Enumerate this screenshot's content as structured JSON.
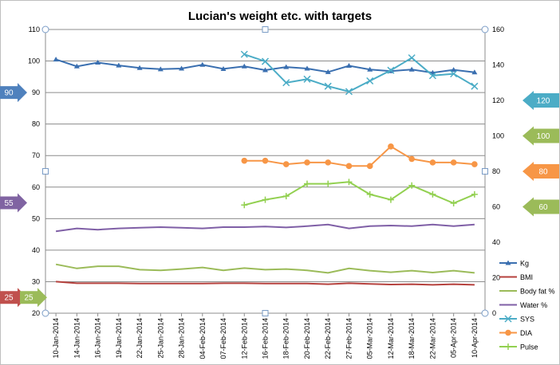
{
  "chart_data": {
    "type": "line",
    "title": "Lucian's  weight etc. with targets",
    "categories": [
      "10-Jan-2014",
      "14-Jan-2014",
      "16-Jan-2014",
      "19-Jan-2014",
      "22-Jan-2014",
      "25-Jan-2014",
      "28-Jan-2014",
      "04-Feb-2014",
      "07-Feb-2014",
      "12-Feb-2014",
      "16-Feb-2014",
      "18-Feb-2014",
      "20-Feb-2014",
      "22-Feb-2014",
      "27-Feb-2014",
      "05-Mar-2014",
      "12-Mar-2014",
      "18-Mar-2014",
      "22-Mar-2014",
      "05-Apr-2014",
      "10-Apr-2014"
    ],
    "y_left": {
      "min": 20,
      "max": 110,
      "step": 10
    },
    "y_right": {
      "min": 0,
      "max": 160,
      "step": 20
    },
    "grid": true,
    "legend_position": "right",
    "series": [
      {
        "name": "Kg",
        "axis": "left",
        "color": "#3a6fb0",
        "marker": "triangle",
        "values": [
          100.5,
          98.3,
          99.5,
          98.6,
          97.8,
          97.4,
          97.6,
          98.8,
          97.5,
          98.3,
          97.1,
          98.1,
          97.6,
          96.5,
          98.5,
          97.3,
          96.8,
          97.3,
          96.3,
          97.2,
          96.4
        ]
      },
      {
        "name": "BMI",
        "axis": "left",
        "color": "#b5413d",
        "marker": "none",
        "values": [
          30.0,
          29.5,
          29.5,
          29.5,
          29.4,
          29.4,
          29.4,
          29.4,
          29.5,
          29.5,
          29.4,
          29.4,
          29.4,
          29.2,
          29.5,
          29.3,
          29.1,
          29.2,
          29.0,
          29.2,
          29.0
        ]
      },
      {
        "name": "Body fat %",
        "axis": "left",
        "color": "#9bbb59",
        "marker": "none",
        "values": [
          35.5,
          34.2,
          34.9,
          34.9,
          33.8,
          33.6,
          34.0,
          34.5,
          33.6,
          34.3,
          33.8,
          34.0,
          33.6,
          32.8,
          34.2,
          33.5,
          33.0,
          33.5,
          32.9,
          33.5,
          32.8
        ]
      },
      {
        "name": "Water %",
        "axis": "left",
        "color": "#7f5fa6",
        "marker": "none",
        "values": [
          46.0,
          46.9,
          46.5,
          46.9,
          47.1,
          47.3,
          47.1,
          46.9,
          47.3,
          47.3,
          47.5,
          47.2,
          47.6,
          48.1,
          46.9,
          47.6,
          47.8,
          47.6,
          48.1,
          47.6,
          48.1
        ]
      },
      {
        "name": "SYS",
        "axis": "right",
        "color": "#4bacc6",
        "marker": "x",
        "values": [
          null,
          null,
          null,
          null,
          null,
          null,
          null,
          null,
          null,
          146,
          142,
          130,
          132,
          128,
          125,
          131,
          137,
          144,
          134,
          135,
          128
        ]
      },
      {
        "name": "DIA",
        "axis": "right",
        "color": "#f79646",
        "marker": "circle",
        "values": [
          null,
          null,
          null,
          null,
          null,
          null,
          null,
          null,
          null,
          86,
          86,
          84,
          85,
          85,
          83,
          83,
          94,
          87,
          85,
          85,
          84
        ]
      },
      {
        "name": "Pulse",
        "axis": "right",
        "color": "#92d050",
        "marker": "plus",
        "values": [
          null,
          null,
          null,
          null,
          null,
          null,
          null,
          null,
          null,
          61,
          64,
          66,
          73,
          73,
          74,
          67,
          64,
          72,
          67,
          62,
          67
        ]
      }
    ],
    "targets": [
      {
        "label": "90",
        "axis": "left",
        "value": 90,
        "color": "#4f81bd",
        "side": "left"
      },
      {
        "label": "55",
        "axis": "left",
        "value": 55,
        "color": "#8064a2",
        "side": "left"
      },
      {
        "label": "25",
        "axis": "left",
        "value": 25,
        "color": "#c0504d",
        "side": "left"
      },
      {
        "label": "25",
        "axis": "left",
        "value": 25,
        "color": "#9bbb59",
        "side": "left"
      },
      {
        "label": "120",
        "axis": "right",
        "value": 120,
        "color": "#4bacc6",
        "side": "right"
      },
      {
        "label": "100",
        "axis": "right",
        "value": 100,
        "color": "#9bbb59",
        "side": "right"
      },
      {
        "label": "80",
        "axis": "right",
        "value": 80,
        "color": "#f79646",
        "side": "right"
      },
      {
        "label": "60",
        "axis": "right",
        "value": 60,
        "color": "#9bbb59",
        "side": "right"
      }
    ]
  }
}
